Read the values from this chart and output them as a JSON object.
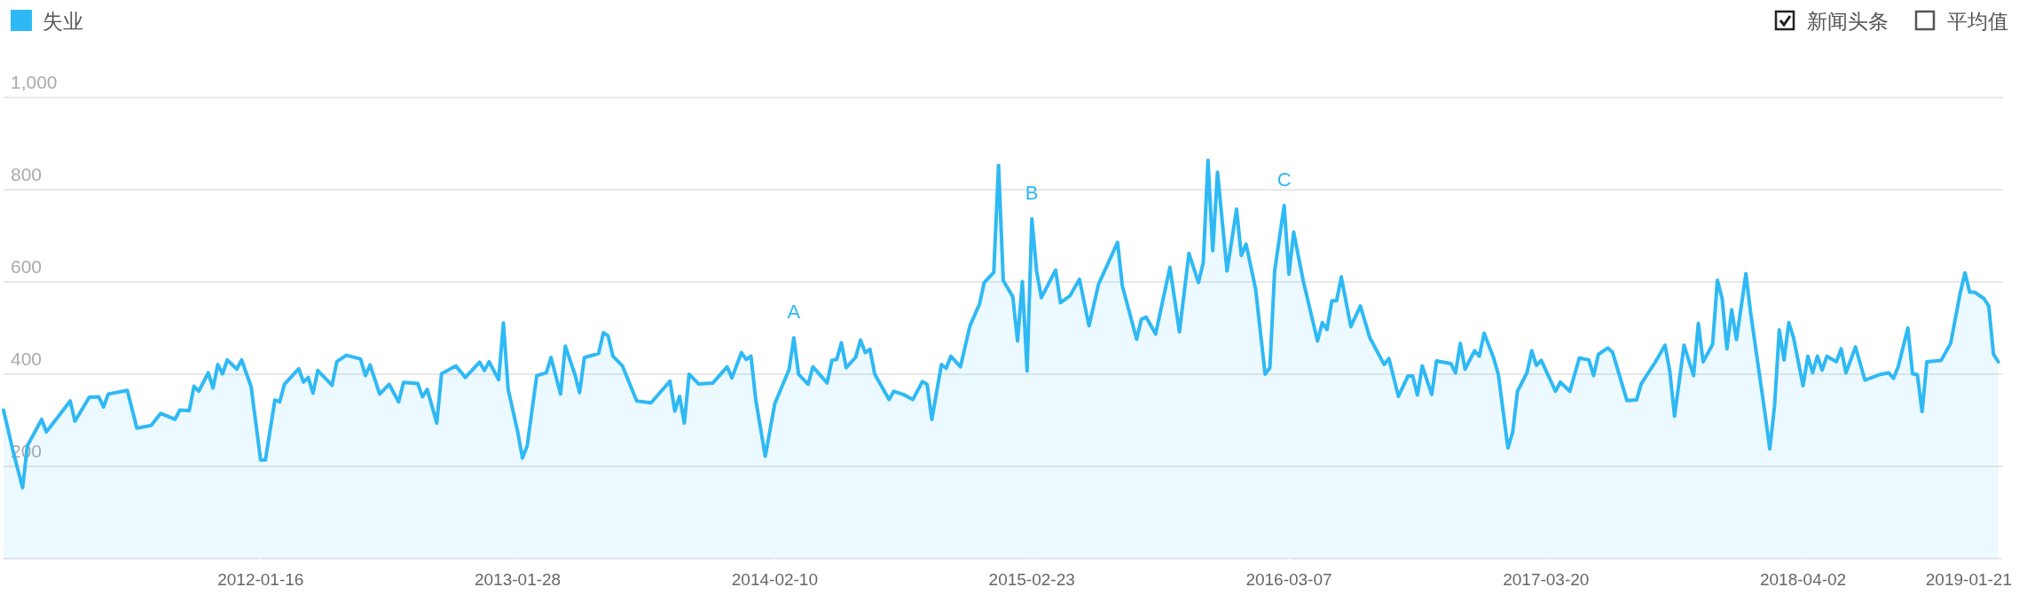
{
  "chart_data": {
    "type": "area",
    "x": [
      "2011-01-03",
      "2011-01-17",
      "2011-01-31",
      "2011-02-07",
      "2011-02-28",
      "2011-03-07",
      "2011-04-11",
      "2011-04-18",
      "2011-05-09",
      "2011-05-23",
      "2011-05-30",
      "2011-06-06",
      "2011-07-04",
      "2011-07-18",
      "2011-08-08",
      "2011-08-22",
      "2011-09-12",
      "2011-09-19",
      "2011-10-03",
      "2011-10-10",
      "2011-10-17",
      "2011-10-31",
      "2011-11-07",
      "2011-11-14",
      "2011-11-21",
      "2011-11-28",
      "2011-12-12",
      "2011-12-19",
      "2012-01-02",
      "2012-01-16",
      "2012-01-23",
      "2012-02-06",
      "2012-02-13",
      "2012-02-20",
      "2012-03-12",
      "2012-03-19",
      "2012-03-26",
      "2012-04-02",
      "2012-04-09",
      "2012-04-30",
      "2012-05-07",
      "2012-05-21",
      "2012-06-11",
      "2012-06-18",
      "2012-06-25",
      "2012-07-09",
      "2012-07-23",
      "2012-08-06",
      "2012-08-13",
      "2012-09-03",
      "2012-09-10",
      "2012-09-17",
      "2012-10-01",
      "2012-10-08",
      "2012-10-29",
      "2012-11-12",
      "2012-12-03",
      "2012-12-10",
      "2012-12-17",
      "2012-12-31",
      "2013-01-07",
      "2013-01-14",
      "2013-01-28",
      "2013-02-04",
      "2013-02-11",
      "2013-02-25",
      "2013-03-11",
      "2013-03-18",
      "2013-04-01",
      "2013-04-08",
      "2013-04-22",
      "2013-04-29",
      "2013-05-06",
      "2013-05-27",
      "2013-06-03",
      "2013-06-10",
      "2013-06-17",
      "2013-07-01",
      "2013-07-22",
      "2013-08-12",
      "2013-09-09",
      "2013-09-16",
      "2013-09-23",
      "2013-09-30",
      "2013-10-07",
      "2013-10-21",
      "2013-11-11",
      "2013-12-02",
      "2013-12-09",
      "2013-12-23",
      "2013-12-30",
      "2014-01-06",
      "2014-01-13",
      "2014-01-27",
      "2014-02-10",
      "2014-03-03",
      "2014-03-10",
      "2014-03-17",
      "2014-03-31",
      "2014-04-07",
      "2014-04-28",
      "2014-05-05",
      "2014-05-12",
      "2014-05-19",
      "2014-05-26",
      "2014-06-09",
      "2014-06-16",
      "2014-06-23",
      "2014-06-30",
      "2014-07-07",
      "2014-07-28",
      "2014-08-04",
      "2014-08-18",
      "2014-09-01",
      "2014-09-15",
      "2014-09-22",
      "2014-09-29",
      "2014-10-13",
      "2014-10-20",
      "2014-10-27",
      "2014-11-10",
      "2014-11-24",
      "2014-12-08",
      "2014-12-15",
      "2014-12-29",
      "2015-01-05",
      "2015-01-12",
      "2015-01-26",
      "2015-02-02",
      "2015-02-09",
      "2015-02-16",
      "2015-02-23",
      "2015-03-02",
      "2015-03-09",
      "2015-03-30",
      "2015-04-06",
      "2015-04-20",
      "2015-05-04",
      "2015-05-18",
      "2015-06-01",
      "2015-06-29",
      "2015-07-06",
      "2015-07-27",
      "2015-08-03",
      "2015-08-10",
      "2015-08-24",
      "2015-09-14",
      "2015-09-28",
      "2015-10-12",
      "2015-10-26",
      "2015-11-02",
      "2015-11-09",
      "2015-11-16",
      "2015-11-23",
      "2015-12-07",
      "2015-12-21",
      "2015-12-28",
      "2016-01-04",
      "2016-01-18",
      "2016-02-01",
      "2016-02-08",
      "2016-02-15",
      "2016-02-29",
      "2016-03-07",
      "2016-03-14",
      "2016-03-28",
      "2016-04-18",
      "2016-04-25",
      "2016-05-02",
      "2016-05-09",
      "2016-05-16",
      "2016-05-23",
      "2016-06-06",
      "2016-06-20",
      "2016-07-04",
      "2016-07-25",
      "2016-08-01",
      "2016-08-15",
      "2016-08-29",
      "2016-09-05",
      "2016-09-12",
      "2016-09-19",
      "2016-10-03",
      "2016-10-10",
      "2016-10-31",
      "2016-11-07",
      "2016-11-14",
      "2016-11-21",
      "2016-12-05",
      "2016-12-12",
      "2016-12-19",
      "2017-01-02",
      "2017-01-09",
      "2017-01-23",
      "2017-01-30",
      "2017-02-06",
      "2017-02-20",
      "2017-02-27",
      "2017-03-06",
      "2017-03-13",
      "2017-04-03",
      "2017-04-10",
      "2017-04-24",
      "2017-05-08",
      "2017-05-22",
      "2017-05-29",
      "2017-06-05",
      "2017-06-19",
      "2017-06-26",
      "2017-07-17",
      "2017-07-31",
      "2017-08-07",
      "2017-08-28",
      "2017-09-11",
      "2017-09-18",
      "2017-09-25",
      "2017-10-09",
      "2017-10-23",
      "2017-10-30",
      "2017-11-06",
      "2017-11-20",
      "2017-11-27",
      "2017-12-04",
      "2017-12-11",
      "2017-12-18",
      "2017-12-25",
      "2018-01-08",
      "2018-01-15",
      "2018-02-05",
      "2018-02-12",
      "2018-02-19",
      "2018-02-26",
      "2018-03-05",
      "2018-03-12",
      "2018-03-19",
      "2018-04-02",
      "2018-04-09",
      "2018-04-16",
      "2018-04-23",
      "2018-04-30",
      "2018-05-07",
      "2018-05-21",
      "2018-05-28",
      "2018-06-04",
      "2018-06-18",
      "2018-07-02",
      "2018-07-23",
      "2018-08-06",
      "2018-08-13",
      "2018-08-20",
      "2018-09-03",
      "2018-09-10",
      "2018-09-17",
      "2018-09-24",
      "2018-10-01",
      "2018-10-22",
      "2018-11-05",
      "2018-11-19",
      "2018-11-26",
      "2018-12-03",
      "2018-12-10",
      "2018-12-24",
      "2018-12-31",
      "2019-01-07",
      "2019-01-14"
    ],
    "series": [
      {
        "name": "失业",
        "color": "#2fb9f4",
        "values": [
          322,
          233,
          154,
          245,
          302,
          275,
          342,
          298,
          350,
          351,
          329,
          357,
          365,
          283,
          289,
          315,
          302,
          322,
          321,
          374,
          363,
          403,
          370,
          421,
          401,
          431,
          411,
          431,
          373,
          214,
          214,
          344,
          340,
          378,
          412,
          383,
          393,
          359,
          408,
          376,
          427,
          441,
          433,
          397,
          420,
          357,
          378,
          340,
          382,
          380,
          351,
          367,
          294,
          401,
          418,
          393,
          426,
          408,
          427,
          388,
          511,
          367,
          275,
          218,
          245,
          397,
          403,
          436,
          357,
          461,
          400,
          360,
          436,
          445,
          490,
          483,
          439,
          418,
          342,
          338,
          385,
          320,
          352,
          294,
          400,
          379,
          381,
          416,
          392,
          447,
          432,
          439,
          345,
          222,
          336,
          410,
          479,
          400,
          378,
          416,
          381,
          430,
          432,
          468,
          414,
          437,
          474,
          447,
          454,
          400,
          345,
          363,
          356,
          345,
          384,
          378,
          302,
          421,
          413,
          439,
          416,
          505,
          552,
          599,
          621,
          853,
          603,
          568,
          472,
          601,
          407,
          737,
          624,
          566,
          626,
          555,
          570,
          606,
          505,
          595,
          686,
          592,
          476,
          519,
          524,
          487,
          632,
          492,
          662,
          599,
          642,
          864,
          668,
          838,
          624,
          758,
          657,
          682,
          585,
          400,
          414,
          624,
          766,
          617,
          708,
          603,
          472,
          512,
          497,
          559,
          559,
          611,
          503,
          548,
          479,
          421,
          434,
          352,
          396,
          396,
          355,
          418,
          356,
          429,
          423,
          403,
          467,
          411,
          451,
          439,
          489,
          435,
          399,
          240,
          274,
          363,
          403,
          451,
          419,
          430,
          363,
          383,
          363,
          435,
          431,
          397,
          443,
          457,
          447,
          343,
          344,
          379,
          427,
          463,
          407,
          309,
          463,
          397,
          510,
          427,
          465,
          604,
          564,
          455,
          540,
          475,
          618,
          532,
          315,
          238,
          331,
          496,
          431,
          512,
          479,
          375,
          439,
          403,
          439,
          409,
          439,
          427,
          455,
          403,
          459,
          387,
          399,
          403,
          391,
          417,
          500,
          401,
          399,
          319,
          427,
          430,
          467,
          576,
          620,
          578,
          578,
          564,
          548,
          443,
          427
        ]
      }
    ],
    "xlim": [
      "2011-01-03",
      "2019-01-21"
    ],
    "xticks": [
      "2012-01-16",
      "2013-01-28",
      "2014-02-10",
      "2015-02-23",
      "2016-03-07",
      "2017-03-20",
      "2018-04-02",
      "2019-01-21"
    ],
    "ylim": [
      0,
      1000
    ],
    "yticks": [
      {
        "value": 200,
        "label": "200"
      },
      {
        "value": 400,
        "label": "400"
      },
      {
        "value": 600,
        "label": "600"
      },
      {
        "value": 800,
        "label": "800"
      },
      {
        "value": 1000,
        "label": "1,000"
      }
    ],
    "grid": "y",
    "legend": "top left",
    "annotations": [
      {
        "text": "A",
        "x": "2014-03-10",
        "y": 479
      },
      {
        "text": "B",
        "x": "2015-02-23",
        "y": 737
      },
      {
        "text": "C",
        "x": "2016-02-29",
        "y": 766
      },
      "新闻头条",
      "平均值"
    ]
  }
}
